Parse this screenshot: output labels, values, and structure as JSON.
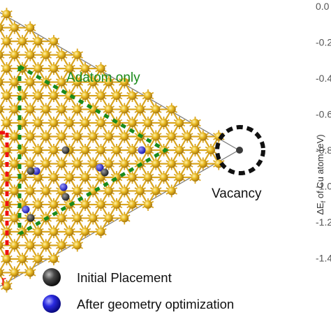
{
  "colors": {
    "gold_atom": "#e8b820",
    "bond": "#d9a520",
    "outline": "#555555",
    "red_region": "#ee1111",
    "green_region": "#1a8a1a",
    "vacancy_ring": "#111111",
    "initial_atom": "#3a3a3a",
    "optimized_atom": "#2222dd"
  },
  "labels": {
    "adatom_only": "Adatom only",
    "vacancy": "Vacancy",
    "cut_letter": "r"
  },
  "legend": {
    "initial": "Initial Placement",
    "after": "After geometry optimization"
  },
  "axis": {
    "title": "ΔE",
    "title_sub": "f",
    "title_rest": " of Cu atom (eV)",
    "ticks": [
      "0.0",
      "-0.2",
      "-0.4",
      "-0.6",
      "-0.8",
      "-1.0",
      "-1.2",
      "-1.4"
    ]
  }
}
